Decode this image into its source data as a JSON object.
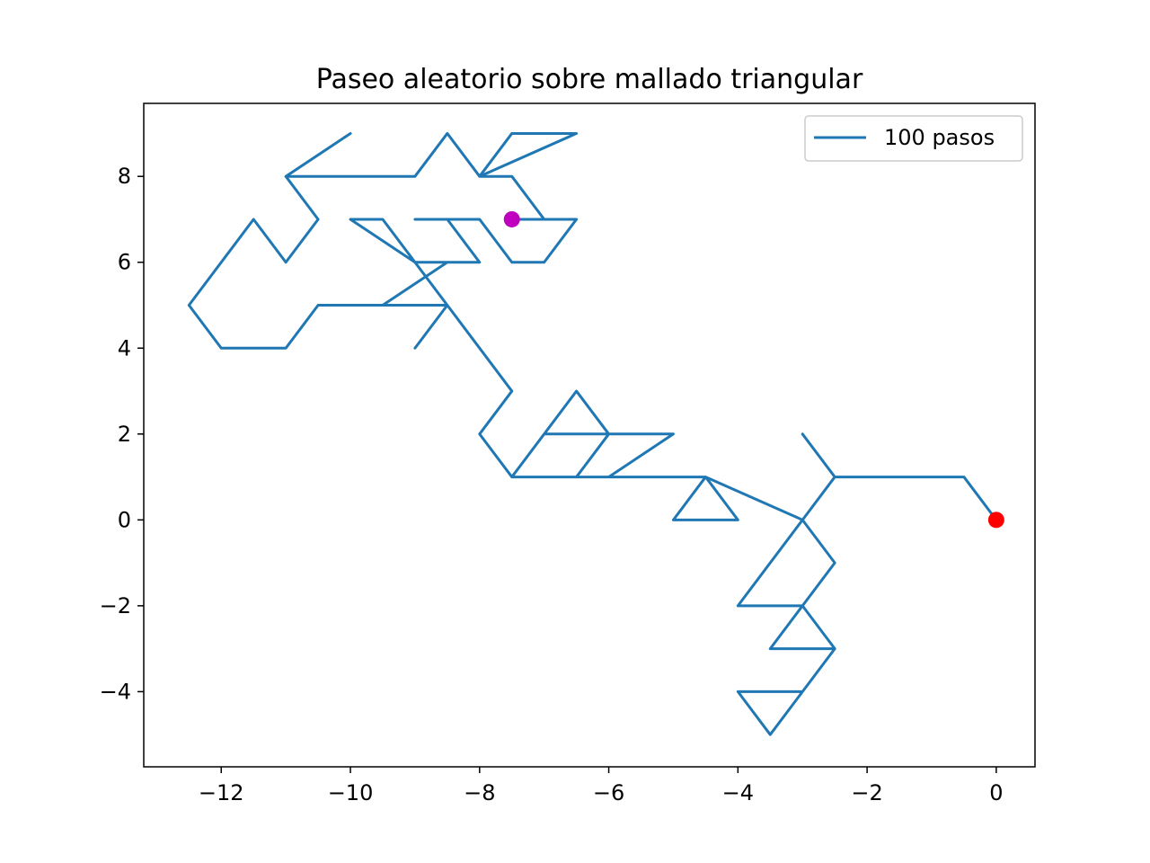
{
  "chart_data": {
    "type": "line",
    "title": "Paseo aleatorio sobre mallado triangular",
    "xlabel": "",
    "ylabel": "",
    "xlim": [
      -13.2,
      0.6
    ],
    "ylim": [
      -5.75,
      9.7
    ],
    "xticks": [
      -12,
      -10,
      -8,
      -6,
      -4,
      -2,
      0
    ],
    "xtick_labels": [
      "−12",
      "−10",
      "−8",
      "−6",
      "−4",
      "−2",
      "0"
    ],
    "yticks": [
      -4,
      -2,
      0,
      2,
      4,
      6,
      8
    ],
    "ytick_labels": [
      "−4",
      "−2",
      "0",
      "2",
      "4",
      "6",
      "8"
    ],
    "grid": false,
    "legend_position": "upper right",
    "series": [
      {
        "name": "100 pasos",
        "color": "#1f77b4",
        "x": [
          0,
          -0.5,
          -2.5,
          -3,
          -2.5,
          -3,
          -2.5,
          -3,
          -3.5,
          -3,
          -2.5,
          -3,
          -4,
          -3.5,
          -3,
          -2.5,
          -3,
          -3.5,
          -4,
          -3,
          -4.5,
          -4,
          -5,
          -4.5,
          -6.5,
          -6,
          -7,
          -7.5,
          -6.5,
          -6,
          -5,
          -6,
          -7.5,
          -8,
          -7.5,
          -8.5,
          -9,
          -8.5,
          -9.5,
          -8.5,
          -9,
          -10,
          -9.5,
          -8.5,
          -9,
          -8,
          -8.5,
          -9,
          -8,
          -7.5,
          -7,
          -6.5,
          -7.5,
          -6.5,
          -7,
          -7.5,
          -8,
          -6.5,
          -7.5,
          -8,
          -8.5,
          -9,
          -10.5,
          -11,
          -10,
          -11,
          -10.5,
          -11,
          -11.5,
          -12.5,
          -12,
          -11,
          -10.5,
          -9.5
        ],
        "y": [
          0,
          1,
          1,
          2,
          1,
          0,
          -1,
          -2,
          -3,
          -3,
          -3,
          -4,
          -4,
          -5,
          -4,
          -3,
          -2,
          -2,
          -2,
          0,
          1,
          0,
          0,
          1,
          1,
          2,
          2,
          1,
          3,
          2,
          2,
          1,
          1,
          2,
          3,
          5,
          4,
          5,
          5,
          6,
          6,
          7,
          7,
          5,
          6,
          6,
          7,
          7,
          7,
          6,
          6,
          7,
          7,
          7,
          7,
          8,
          8,
          9,
          9,
          8,
          9,
          8,
          8,
          8,
          9,
          8,
          7,
          6,
          7,
          5,
          4,
          4,
          5,
          5
        ]
      }
    ],
    "markers": [
      {
        "x": 0,
        "y": 0,
        "color": "#ff0000"
      },
      {
        "x": -7.5,
        "y": 7,
        "color": "#bf00bf"
      }
    ]
  }
}
